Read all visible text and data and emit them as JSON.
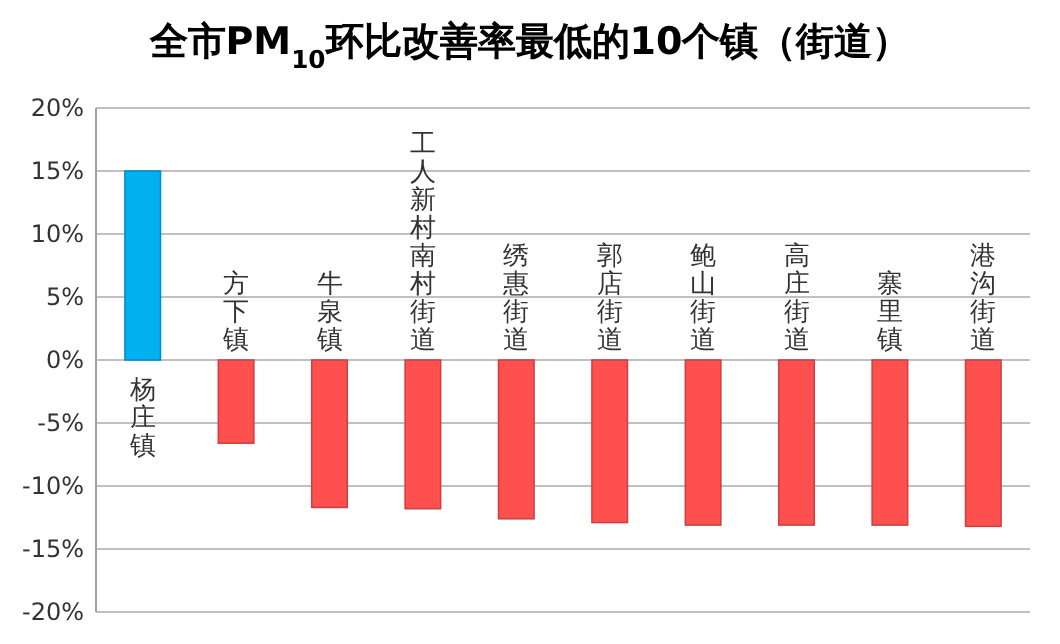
{
  "chart_data": {
    "type": "bar",
    "title": "全市PM$_{10}$环比改善率最低的10个镇（街道）",
    "categories": [
      "杨庄镇",
      "方下镇",
      "牛泉镇",
      "工人新村南村街道",
      "绣惠街道",
      "郭店街道",
      "鲍山街道",
      "高庄街道",
      "寨里镇",
      "港沟街道"
    ],
    "values": [
      15,
      -6.6,
      -11.7,
      -11.8,
      -12.6,
      -12.9,
      -13.1,
      -13.1,
      -13.1,
      -13.2
    ],
    "colors": [
      "#00b0f0",
      "#ff5050",
      "#ff5050",
      "#ff5050",
      "#ff5050",
      "#ff5050",
      "#ff5050",
      "#ff5050",
      "#ff5050",
      "#ff5050"
    ],
    "ylim": [
      -20,
      20
    ],
    "yticks": [
      {
        "value": -20,
        "label": "-20%"
      },
      {
        "value": -15,
        "label": "-15%"
      },
      {
        "value": -10,
        "label": "-10%"
      },
      {
        "value": -5,
        "label": "-5%"
      },
      {
        "value": 0,
        "label": "0%"
      },
      {
        "value": 5,
        "label": "5%"
      },
      {
        "value": 10,
        "label": "10%"
      },
      {
        "value": 15,
        "label": "15%"
      },
      {
        "value": 20,
        "label": "20%"
      }
    ],
    "grid": "y"
  }
}
